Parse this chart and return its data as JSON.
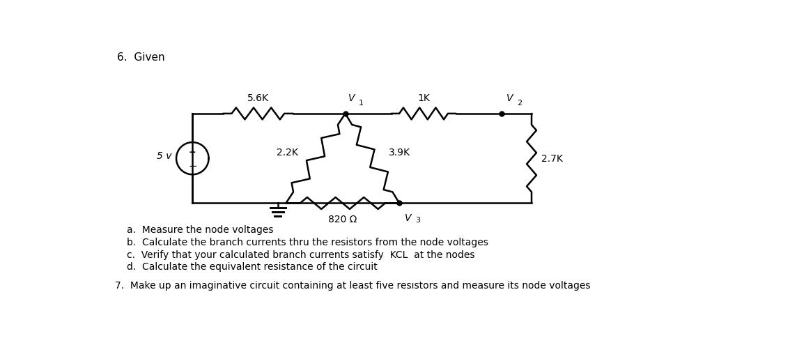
{
  "title_text": "6.  Given",
  "bg_color": "#ffffff",
  "figsize": [
    11.44,
    5.06
  ],
  "dpi": 100,
  "items_a": "a.  Measure the node voltages",
  "items_b": "b.  Calculate the branch currents thru the resistors from the node voltages",
  "items_c": "c.  Verify that your calculated branch currents satisfy  KCL  at the nodes",
  "items_d": "d.  Calculate the equivalent resistance of the circuit",
  "item_7": "7.  Make up an imaginative circuit containing at least five resıstors and measure its node voltages",
  "label_56K": "5.6K",
  "label_1K": "1K",
  "label_22K": "2.2K",
  "label_39K": "3.9K",
  "label_27K": "2.7K",
  "label_820": "820 Ω",
  "label_V1": "V",
  "label_V1_sub": "1",
  "label_V2": "V",
  "label_V2_sub": "2",
  "label_V3": "V",
  "label_V3_sub": "3",
  "label_5v": "5 v",
  "line_color": "#000000",
  "lw": 1.8
}
